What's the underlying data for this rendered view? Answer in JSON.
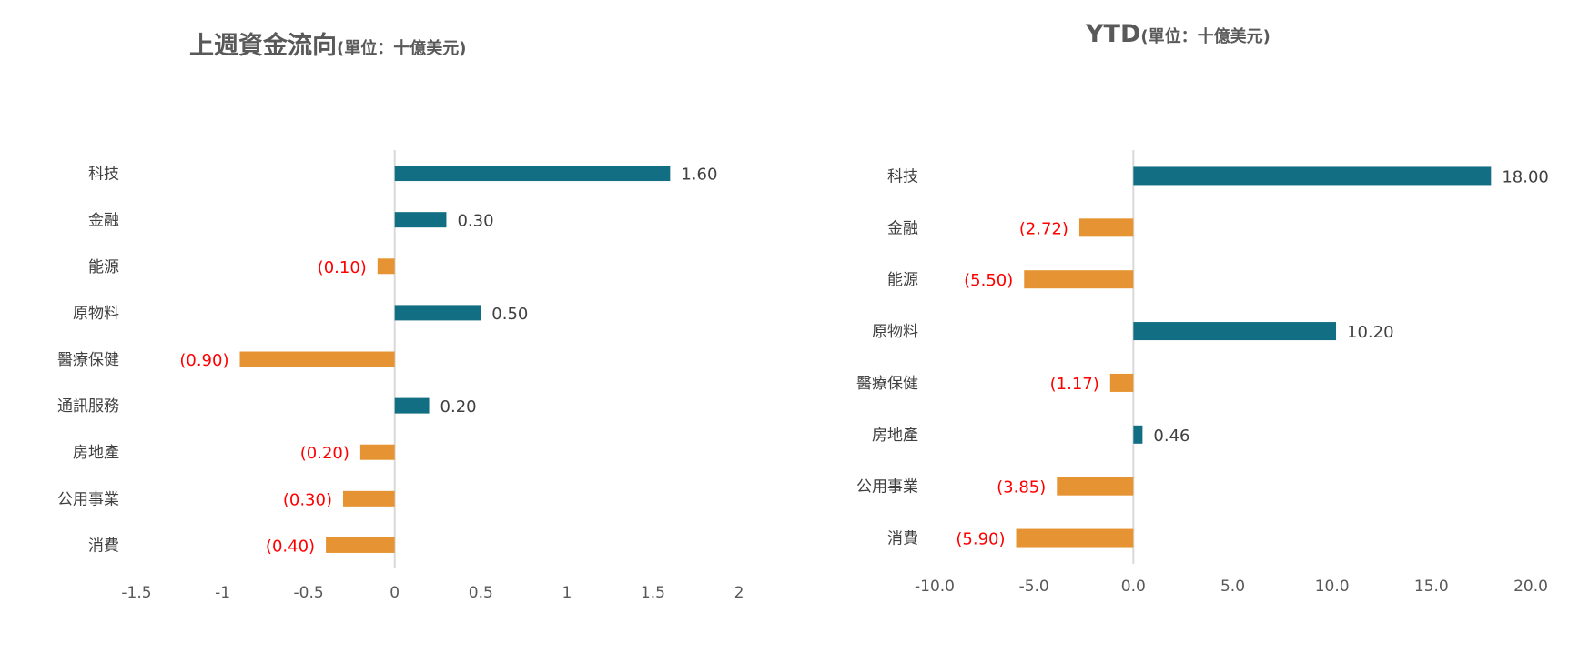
{
  "chart_data": [
    {
      "type": "bar",
      "orientation": "horizontal",
      "title": "上週資金流向",
      "title_unit": "(單位：十億美元)",
      "categories": [
        "科技",
        "金融",
        "能源",
        "原物料",
        "醫療保健",
        "通訊服務",
        "房地產",
        "公用事業",
        "消費"
      ],
      "values": [
        1.6,
        0.3,
        -0.1,
        0.5,
        -0.9,
        0.2,
        -0.2,
        -0.3,
        -0.4
      ],
      "value_labels": [
        "1.60",
        "0.30",
        "(0.10)",
        "0.50",
        "(0.90)",
        "0.20",
        "(0.20)",
        "(0.30)",
        "(0.40)"
      ],
      "xlim": [
        -1.5,
        2
      ],
      "x_ticks": [
        -1.5,
        -1,
        -0.5,
        0,
        0.5,
        1,
        1.5,
        2
      ],
      "x_tick_labels": [
        "-1.5",
        "-1",
        "-0.5",
        "0",
        "0.5",
        "1",
        "1.5",
        "2"
      ],
      "grid": false,
      "colors": {
        "positive": "#126e82",
        "negative": "#e69433",
        "negative_label": "#ff0000",
        "positive_label": "#404040",
        "axis": "#d9d9d9",
        "tick_label": "#595959"
      }
    },
    {
      "type": "bar",
      "orientation": "horizontal",
      "title": "YTD",
      "title_unit": "(單位：十億美元)",
      "categories": [
        "科技",
        "金融",
        "能源",
        "原物料",
        "醫療保健",
        "房地產",
        "公用事業",
        "消費"
      ],
      "values": [
        18.0,
        -2.72,
        -5.5,
        10.2,
        -1.17,
        0.46,
        -3.85,
        -5.9
      ],
      "value_labels": [
        "18.00",
        "(2.72)",
        "(5.50)",
        "10.20",
        "(1.17)",
        "0.46",
        "(3.85)",
        "(5.90)"
      ],
      "xlim": [
        -10,
        20
      ],
      "x_ticks": [
        -10,
        -5,
        0,
        5,
        10,
        15,
        20
      ],
      "x_tick_labels": [
        "-10.0",
        "-5.0",
        "0.0",
        "5.0",
        "10.0",
        "15.0",
        "20.0"
      ],
      "grid": false,
      "colors": {
        "positive": "#126e82",
        "negative": "#e69433",
        "negative_label": "#ff0000",
        "positive_label": "#404040",
        "axis": "#d9d9d9",
        "tick_label": "#595959"
      }
    }
  ]
}
